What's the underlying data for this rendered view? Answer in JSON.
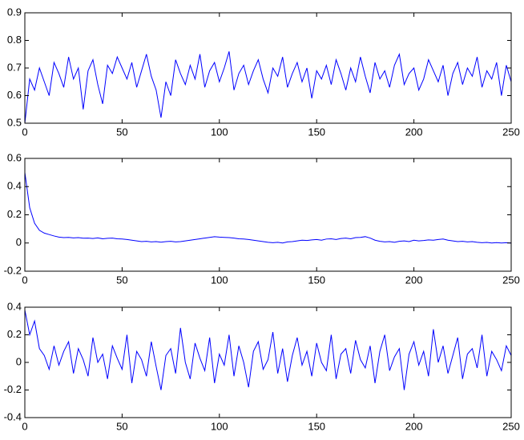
{
  "chart_data": [
    {
      "type": "line",
      "color": "#0000ff",
      "x": [
        0,
        2.5,
        5,
        7.5,
        10,
        12.5,
        15,
        17.5,
        20,
        22.5,
        25,
        27.5,
        30,
        32.5,
        35,
        37.5,
        40,
        42.5,
        45,
        47.5,
        50,
        52.5,
        55,
        57.5,
        60,
        62.5,
        65,
        67.5,
        70,
        72.5,
        75,
        77.5,
        80,
        82.5,
        85,
        87.5,
        90,
        92.5,
        95,
        97.5,
        100,
        102.5,
        105,
        107.5,
        110,
        112.5,
        115,
        117.5,
        120,
        122.5,
        125,
        127.5,
        130,
        132.5,
        135,
        137.5,
        140,
        142.5,
        145,
        147.5,
        150,
        152.5,
        155,
        157.5,
        160,
        162.5,
        165,
        167.5,
        170,
        172.5,
        175,
        177.5,
        180,
        182.5,
        185,
        187.5,
        190,
        192.5,
        195,
        197.5,
        200,
        202.5,
        205,
        207.5,
        210,
        212.5,
        215,
        217.5,
        220,
        222.5,
        225,
        227.5,
        230,
        232.5,
        235,
        237.5,
        240,
        242.5,
        245,
        247.5,
        250
      ],
      "values": [
        0.5,
        0.66,
        0.62,
        0.7,
        0.65,
        0.6,
        0.72,
        0.68,
        0.63,
        0.74,
        0.66,
        0.7,
        0.55,
        0.69,
        0.73,
        0.64,
        0.57,
        0.71,
        0.68,
        0.74,
        0.7,
        0.66,
        0.72,
        0.63,
        0.69,
        0.75,
        0.67,
        0.62,
        0.52,
        0.65,
        0.6,
        0.73,
        0.68,
        0.64,
        0.71,
        0.66,
        0.75,
        0.63,
        0.69,
        0.72,
        0.65,
        0.7,
        0.76,
        0.62,
        0.68,
        0.71,
        0.64,
        0.69,
        0.73,
        0.66,
        0.61,
        0.7,
        0.67,
        0.74,
        0.63,
        0.68,
        0.72,
        0.65,
        0.7,
        0.59,
        0.69,
        0.66,
        0.71,
        0.64,
        0.73,
        0.68,
        0.62,
        0.7,
        0.65,
        0.74,
        0.67,
        0.61,
        0.72,
        0.66,
        0.69,
        0.63,
        0.71,
        0.75,
        0.64,
        0.68,
        0.7,
        0.62,
        0.66,
        0.73,
        0.69,
        0.65,
        0.71,
        0.6,
        0.68,
        0.72,
        0.64,
        0.7,
        0.67,
        0.74,
        0.63,
        0.69,
        0.66,
        0.72,
        0.6,
        0.71,
        0.65
      ],
      "xlim": [
        0,
        250
      ],
      "xticks": [
        0,
        50,
        100,
        150,
        200,
        250
      ],
      "ylim": [
        0.5,
        0.9
      ],
      "yticks": [
        0.5,
        0.6,
        0.7,
        0.8,
        0.9
      ]
    },
    {
      "type": "line",
      "color": "#0000ff",
      "x": [
        0,
        2.5,
        5,
        7.5,
        10,
        12.5,
        15,
        17.5,
        20,
        22.5,
        25,
        27.5,
        30,
        32.5,
        35,
        37.5,
        40,
        42.5,
        45,
        47.5,
        50,
        52.5,
        55,
        57.5,
        60,
        62.5,
        65,
        67.5,
        70,
        72.5,
        75,
        77.5,
        80,
        82.5,
        85,
        87.5,
        90,
        92.5,
        95,
        97.5,
        100,
        102.5,
        105,
        107.5,
        110,
        112.5,
        115,
        117.5,
        120,
        122.5,
        125,
        127.5,
        130,
        132.5,
        135,
        137.5,
        140,
        142.5,
        145,
        147.5,
        150,
        152.5,
        155,
        157.5,
        160,
        162.5,
        165,
        167.5,
        170,
        172.5,
        175,
        177.5,
        180,
        182.5,
        185,
        187.5,
        190,
        192.5,
        195,
        197.5,
        200,
        202.5,
        205,
        207.5,
        210,
        212.5,
        215,
        217.5,
        220,
        222.5,
        225,
        227.5,
        230,
        232.5,
        235,
        237.5,
        240,
        242.5,
        245,
        247.5,
        250
      ],
      "values": [
        0.5,
        0.25,
        0.14,
        0.09,
        0.07,
        0.06,
        0.05,
        0.042,
        0.038,
        0.04,
        0.036,
        0.038,
        0.034,
        0.035,
        0.032,
        0.036,
        0.03,
        0.033,
        0.035,
        0.03,
        0.028,
        0.025,
        0.02,
        0.015,
        0.01,
        0.012,
        0.008,
        0.01,
        0.006,
        0.01,
        0.012,
        0.008,
        0.01,
        0.015,
        0.02,
        0.025,
        0.03,
        0.035,
        0.04,
        0.045,
        0.042,
        0.04,
        0.038,
        0.035,
        0.03,
        0.028,
        0.025,
        0.02,
        0.015,
        0.01,
        0.005,
        0.002,
        0.005,
        0,
        0.008,
        0.01,
        0.015,
        0.02,
        0.018,
        0.022,
        0.025,
        0.02,
        0.028,
        0.03,
        0.025,
        0.032,
        0.035,
        0.03,
        0.038,
        0.04,
        0.045,
        0.035,
        0.02,
        0.012,
        0.008,
        0.01,
        0.005,
        0.012,
        0.015,
        0.01,
        0.02,
        0.015,
        0.018,
        0.022,
        0.02,
        0.025,
        0.028,
        0.02,
        0.015,
        0.01,
        0.012,
        0.008,
        0.01,
        0.005,
        0.002,
        0.004,
        0,
        0.003,
        0,
        0.002,
        0
      ],
      "xlim": [
        0,
        250
      ],
      "xticks": [
        0,
        50,
        100,
        150,
        200,
        250
      ],
      "ylim": [
        -0.2,
        0.6
      ],
      "yticks": [
        -0.2,
        0,
        0.2,
        0.4,
        0.6
      ]
    },
    {
      "type": "line",
      "color": "#0000ff",
      "x": [
        0,
        2.5,
        5,
        7.5,
        10,
        12.5,
        15,
        17.5,
        20,
        22.5,
        25,
        27.5,
        30,
        32.5,
        35,
        37.5,
        40,
        42.5,
        45,
        47.5,
        50,
        52.5,
        55,
        57.5,
        60,
        62.5,
        65,
        67.5,
        70,
        72.5,
        75,
        77.5,
        80,
        82.5,
        85,
        87.5,
        90,
        92.5,
        95,
        97.5,
        100,
        102.5,
        105,
        107.5,
        110,
        112.5,
        115,
        117.5,
        120,
        122.5,
        125,
        127.5,
        130,
        132.5,
        135,
        137.5,
        140,
        142.5,
        145,
        147.5,
        150,
        152.5,
        155,
        157.5,
        160,
        162.5,
        165,
        167.5,
        170,
        172.5,
        175,
        177.5,
        180,
        182.5,
        185,
        187.5,
        190,
        192.5,
        195,
        197.5,
        200,
        202.5,
        205,
        207.5,
        210,
        212.5,
        215,
        217.5,
        220,
        222.5,
        225,
        227.5,
        230,
        232.5,
        235,
        237.5,
        240,
        242.5,
        245,
        247.5,
        250
      ],
      "values": [
        0.38,
        0.2,
        0.3,
        0.1,
        0.05,
        -0.05,
        0.12,
        -0.02,
        0.08,
        0.15,
        -0.08,
        0.1,
        0.02,
        -0.1,
        0.18,
        0,
        0.06,
        -0.12,
        0.12,
        0.03,
        -0.05,
        0.2,
        -0.15,
        0.08,
        0.02,
        -0.1,
        0.15,
        -0.03,
        -0.2,
        0.05,
        0.1,
        -0.08,
        0.25,
        0,
        -0.12,
        0.14,
        0.03,
        -0.06,
        0.18,
        -0.15,
        0.06,
        -0.02,
        0.2,
        -0.1,
        0.12,
        0,
        -0.18,
        0.08,
        0.15,
        -0.05,
        0.02,
        0.22,
        -0.08,
        0.1,
        -0.14,
        0.05,
        0.18,
        -0.02,
        0.08,
        -0.1,
        0.14,
        0,
        -0.06,
        0.2,
        -0.12,
        0.06,
        0.1,
        -0.08,
        0.16,
        0.02,
        -0.04,
        0.12,
        -0.15,
        0.08,
        0.2,
        -0.06,
        0.04,
        0.1,
        -0.2,
        0.06,
        0.15,
        -0.02,
        0.08,
        -0.1,
        0.24,
        0,
        0.12,
        -0.08,
        0.05,
        0.18,
        -0.12,
        0.06,
        0.1,
        -0.04,
        0.2,
        -0.1,
        0.08,
        0.02,
        -0.06,
        0.12,
        0.05
      ],
      "xlim": [
        0,
        250
      ],
      "xticks": [
        0,
        50,
        100,
        150,
        200,
        250
      ],
      "ylim": [
        -0.4,
        0.4
      ],
      "yticks": [
        -0.4,
        -0.2,
        0,
        0.2,
        0.4
      ]
    }
  ]
}
